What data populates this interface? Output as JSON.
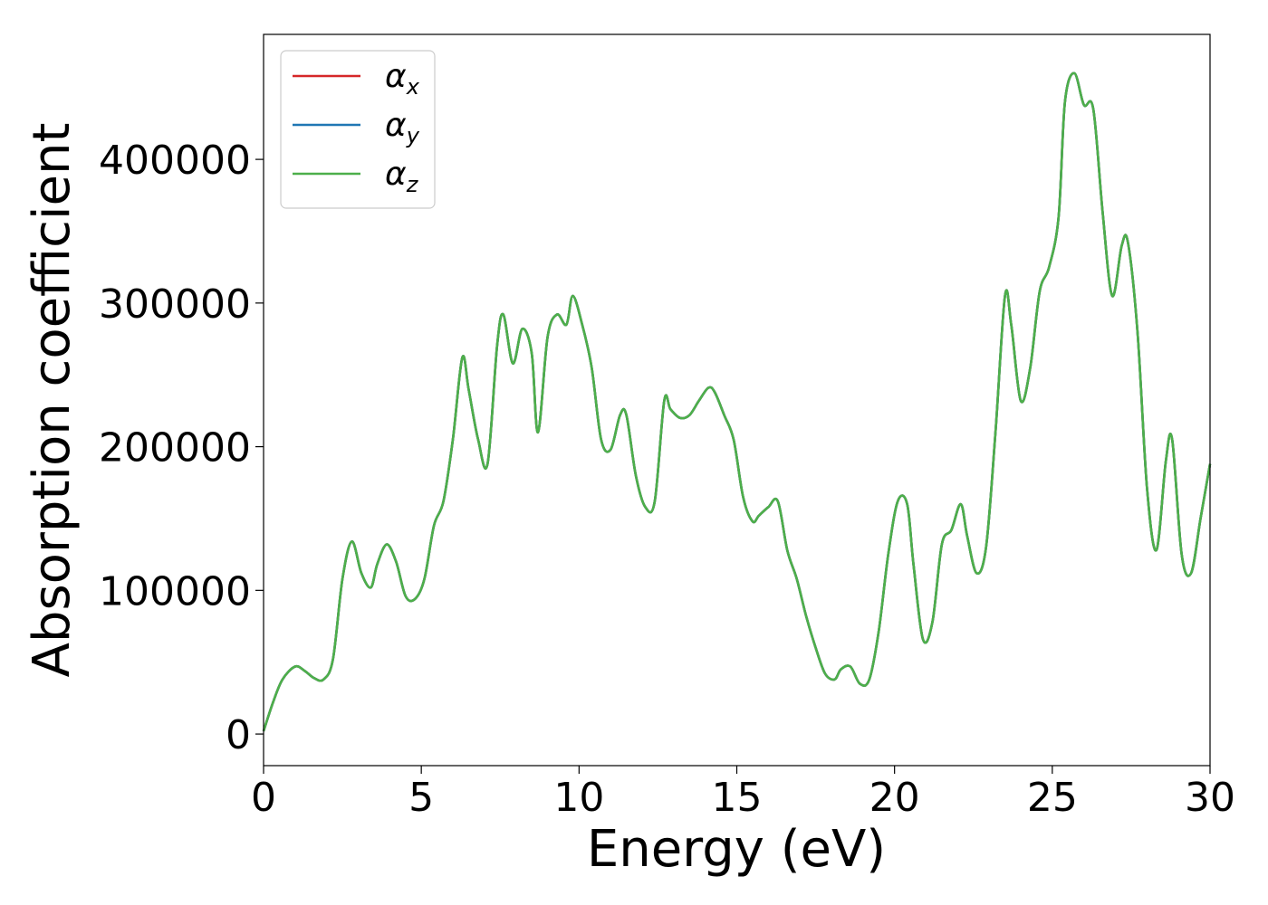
{
  "chart_data": {
    "type": "line",
    "xlabel": "Energy (eV)",
    "ylabel": "Absorption coefficient",
    "xlim": [
      0,
      30
    ],
    "ylim": [
      -22000,
      487000
    ],
    "xticks": [
      0,
      5,
      10,
      15,
      20,
      25,
      30
    ],
    "xtick_labels": [
      "0",
      "5",
      "10",
      "15",
      "20",
      "25",
      "30"
    ],
    "yticks": [
      0,
      100000,
      200000,
      300000,
      400000
    ],
    "ytick_labels": [
      "0",
      "100000",
      "200000",
      "300000",
      "400000"
    ],
    "grid": false,
    "legend": {
      "placement": "top-left"
    },
    "x": [
      0,
      0.3,
      0.6,
      1.0,
      1.3,
      1.6,
      1.9,
      2.2,
      2.5,
      2.8,
      3.1,
      3.4,
      3.6,
      3.9,
      4.2,
      4.5,
      4.8,
      5.1,
      5.4,
      5.7,
      6.0,
      6.3,
      6.5,
      6.8,
      7.1,
      7.4,
      7.6,
      7.9,
      8.2,
      8.5,
      8.7,
      9.0,
      9.3,
      9.6,
      9.8,
      10.1,
      10.4,
      10.7,
      11.0,
      11.3,
      11.5,
      11.8,
      12.1,
      12.4,
      12.7,
      12.9,
      13.2,
      13.5,
      13.8,
      14.1,
      14.3,
      14.6,
      14.9,
      15.2,
      15.5,
      15.7,
      16.0,
      16.3,
      16.6,
      16.9,
      17.2,
      17.5,
      17.8,
      18.1,
      18.3,
      18.6,
      18.9,
      19.2,
      19.5,
      19.8,
      20.1,
      20.4,
      20.6,
      20.9,
      21.2,
      21.5,
      21.8,
      22.1,
      22.3,
      22.6,
      22.9,
      23.2,
      23.5,
      23.7,
      24.0,
      24.3,
      24.6,
      24.9,
      25.2,
      25.4,
      25.7,
      26.0,
      26.3,
      26.6,
      26.9,
      27.2,
      27.4,
      27.7,
      28.0,
      28.3,
      28.6,
      28.8,
      29.1,
      29.4,
      29.7,
      30.0
    ],
    "series": [
      {
        "name": "α_x",
        "color": "#d62728",
        "values": [
          2000,
          22000,
          38000,
          47000,
          44000,
          39000,
          38000,
          52000,
          108000,
          134000,
          112000,
          102000,
          118000,
          132000,
          120000,
          96000,
          94000,
          108000,
          145000,
          162000,
          205000,
          262000,
          240000,
          205000,
          188000,
          270000,
          292000,
          258000,
          282000,
          265000,
          210000,
          276000,
          292000,
          285000,
          305000,
          285000,
          255000,
          205000,
          198000,
          222000,
          222000,
          180000,
          158000,
          162000,
          232000,
          226000,
          220000,
          222000,
          232000,
          241000,
          238000,
          222000,
          205000,
          165000,
          148000,
          152000,
          158000,
          162000,
          128000,
          108000,
          82000,
          60000,
          42000,
          38000,
          45000,
          47000,
          35000,
          38000,
          72000,
          125000,
          162000,
          160000,
          118000,
          66000,
          78000,
          132000,
          142000,
          160000,
          138000,
          112000,
          130000,
          210000,
          305000,
          285000,
          232000,
          255000,
          308000,
          325000,
          360000,
          440000,
          460000,
          438000,
          435000,
          362000,
          305000,
          340000,
          342000,
          280000,
          172000,
          128000,
          190000,
          205000,
          125000,
          112000,
          150000,
          188000
        ]
      },
      {
        "name": "α_y",
        "color": "#1f77b4",
        "values": [
          2000,
          22000,
          38000,
          47000,
          44000,
          39000,
          38000,
          52000,
          108000,
          134000,
          112000,
          102000,
          118000,
          132000,
          120000,
          96000,
          94000,
          108000,
          145000,
          162000,
          205000,
          262000,
          240000,
          205000,
          188000,
          270000,
          292000,
          258000,
          282000,
          265000,
          210000,
          276000,
          292000,
          285000,
          305000,
          285000,
          255000,
          205000,
          198000,
          222000,
          222000,
          180000,
          158000,
          162000,
          232000,
          226000,
          220000,
          222000,
          232000,
          241000,
          238000,
          222000,
          205000,
          165000,
          148000,
          152000,
          158000,
          162000,
          128000,
          108000,
          82000,
          60000,
          42000,
          38000,
          45000,
          47000,
          35000,
          38000,
          72000,
          125000,
          162000,
          160000,
          118000,
          66000,
          78000,
          132000,
          142000,
          160000,
          138000,
          112000,
          130000,
          210000,
          305000,
          285000,
          232000,
          255000,
          308000,
          325000,
          360000,
          440000,
          460000,
          438000,
          435000,
          362000,
          305000,
          340000,
          342000,
          280000,
          172000,
          128000,
          190000,
          205000,
          125000,
          112000,
          150000,
          188000
        ]
      },
      {
        "name": "α_z",
        "color": "#4daf4a",
        "values": [
          2000,
          22000,
          38000,
          47000,
          44000,
          39000,
          38000,
          52000,
          108000,
          134000,
          112000,
          102000,
          118000,
          132000,
          120000,
          96000,
          94000,
          108000,
          145000,
          162000,
          205000,
          262000,
          240000,
          205000,
          188000,
          270000,
          292000,
          258000,
          282000,
          265000,
          210000,
          276000,
          292000,
          285000,
          305000,
          285000,
          255000,
          205000,
          198000,
          222000,
          222000,
          180000,
          158000,
          162000,
          232000,
          226000,
          220000,
          222000,
          232000,
          241000,
          238000,
          222000,
          205000,
          165000,
          148000,
          152000,
          158000,
          162000,
          128000,
          108000,
          82000,
          60000,
          42000,
          38000,
          45000,
          47000,
          35000,
          38000,
          72000,
          125000,
          162000,
          160000,
          118000,
          66000,
          78000,
          132000,
          142000,
          160000,
          138000,
          112000,
          130000,
          210000,
          305000,
          285000,
          232000,
          255000,
          308000,
          325000,
          360000,
          440000,
          460000,
          438000,
          435000,
          362000,
          305000,
          340000,
          342000,
          280000,
          172000,
          128000,
          190000,
          205000,
          125000,
          112000,
          150000,
          188000
        ]
      }
    ]
  }
}
